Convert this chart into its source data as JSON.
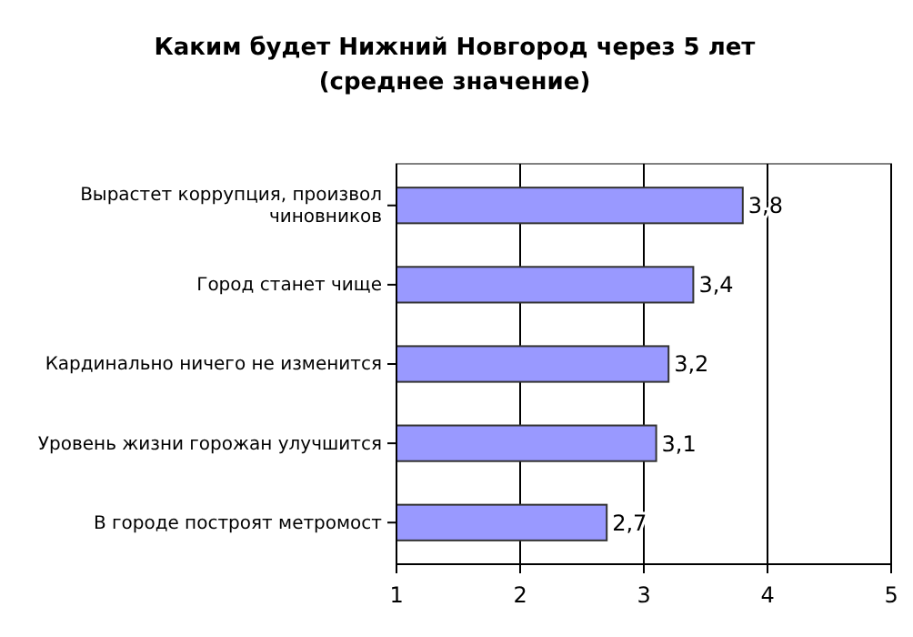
{
  "chart_data": {
    "type": "bar",
    "orientation": "horizontal",
    "title": "Каким будет Нижний Новгород через 5 лет",
    "subtitle": "(среднее значение)",
    "categories": [
      "Вырастет коррупция, произвол чиновников",
      "Город станет чище",
      "Кардинально ничего не изменится",
      "Уровень жизни горожан улучшится",
      "В городе построят метромост"
    ],
    "values": [
      3.8,
      3.4,
      3.2,
      3.1,
      2.7
    ],
    "value_labels": [
      "3,8",
      "3,4",
      "3,2",
      "3,1",
      "2,7"
    ],
    "color": "#9999ff",
    "xlim": [
      1,
      5
    ],
    "xticks": [
      1,
      2,
      3,
      4,
      5
    ],
    "grid": "x"
  }
}
